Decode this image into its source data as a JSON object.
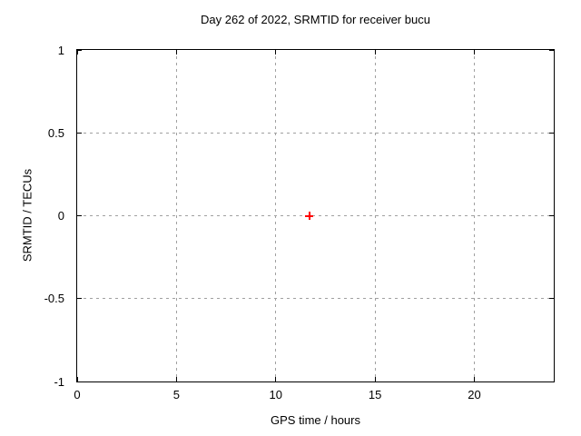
{
  "chart_data": {
    "type": "scatter",
    "title": "Day 262 of 2022, SRMTID for receiver bucu",
    "xlabel": "GPS time / hours",
    "ylabel": "SRMTID / TECUs",
    "xlim": [
      0,
      24
    ],
    "ylim": [
      -1,
      1
    ],
    "xticks": [
      {
        "value": 0,
        "label": "0"
      },
      {
        "value": 5,
        "label": "5"
      },
      {
        "value": 10,
        "label": "10"
      },
      {
        "value": 15,
        "label": "15"
      },
      {
        "value": 20,
        "label": "20"
      }
    ],
    "yticks": [
      {
        "value": -1,
        "label": "-1"
      },
      {
        "value": -0.5,
        "label": "-0.5"
      },
      {
        "value": 0,
        "label": "0"
      },
      {
        "value": 0.5,
        "label": "0.5"
      },
      {
        "value": 1,
        "label": "1"
      }
    ],
    "grid": true,
    "legend": false,
    "series": [
      {
        "name": "SRMTID",
        "marker": "plus",
        "color": "#ff0000",
        "points": [
          {
            "x": 11.7,
            "y": 0.0
          }
        ]
      }
    ],
    "colors": {
      "background": "#ffffff",
      "border": "#000000",
      "grid": "#a0a0a0",
      "text": "#000000"
    }
  }
}
